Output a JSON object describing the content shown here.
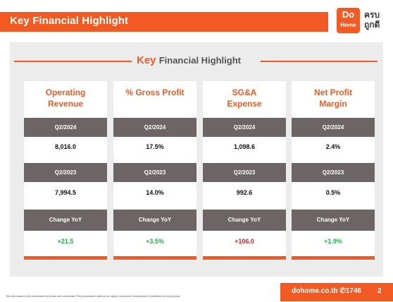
{
  "header": {
    "title": "Key Financial Highlight",
    "logo_top": "Do",
    "logo_bottom": "Home",
    "logo_thai_line1": "ครบ",
    "logo_thai_line2": "ถูกดี"
  },
  "section": {
    "title_key": "Key",
    "title_rest": "Financial Highlight"
  },
  "cards": [
    {
      "title": "Operating Revenue",
      "current_label": "Q2/2024",
      "current_value": "8,016.0",
      "prior_label": "Q2/2023",
      "prior_value": "7,994.5",
      "change_label": "Change YoY",
      "change_value": "+21.5"
    },
    {
      "title": "% Gross Profit",
      "current_label": "Q2/2024",
      "current_value": "17.5%",
      "prior_label": "Q2/2023",
      "prior_value": "14.0%",
      "change_label": "Change YoY",
      "change_value": "+3.5%"
    },
    {
      "title": "SG&A Expense",
      "current_label": "Q2/2024",
      "current_value": "1,098.6",
      "prior_label": "Q2/2023",
      "prior_value": "992.6",
      "change_label": "Change YoY",
      "change_value": "+106.0"
    },
    {
      "title": "Net Profit Margin",
      "current_label": "Q2/2024",
      "current_value": "2.4%",
      "prior_label": "Q2/2023",
      "prior_value": "0.5%",
      "change_label": "Change YoY",
      "change_value": "+1.9%"
    }
  ],
  "footer": {
    "disclaimer": "This information in this presentation is private and confidential. This presentation shall not be copied, reproduced, redistributed or published for any purpose.",
    "website": "dohome.co.th ✆1746",
    "page_number": "2"
  },
  "colors": {
    "brand_orange": "#f15a22",
    "label_grey": "#6d6565",
    "positive_green": "#1fb34a",
    "negative_red": "#e01b1b"
  }
}
